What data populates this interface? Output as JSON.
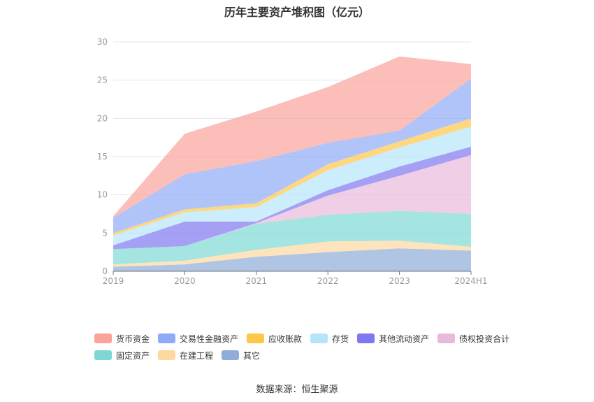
{
  "chart_data": {
    "type": "area",
    "title": "历年主要资产堆积图（亿元）",
    "categories": [
      "2019",
      "2020",
      "2021",
      "2022",
      "2023",
      "2024H1"
    ],
    "ylim": [
      0,
      30
    ],
    "yticks": [
      0,
      5,
      10,
      15,
      20,
      25,
      30
    ],
    "stacked": true,
    "grid": true,
    "legend_position": "bottom",
    "series": [
      {
        "name": "其它",
        "color": "#8fadd9",
        "values": [
          0.6,
          0.9,
          1.9,
          2.5,
          3.0,
          2.7
        ]
      },
      {
        "name": "在建工程",
        "color": "#fdd9a0",
        "values": [
          0.3,
          0.5,
          0.9,
          1.4,
          1.0,
          0.5
        ]
      },
      {
        "name": "固定资产",
        "color": "#7dd8d4",
        "values": [
          2.0,
          1.9,
          3.4,
          3.5,
          3.9,
          4.3
        ]
      },
      {
        "name": "债权投资合计",
        "color": "#e9b9db",
        "values": [
          0.0,
          0.0,
          0.1,
          2.5,
          4.6,
          7.7
        ]
      },
      {
        "name": "其他流动资产",
        "color": "#7f78ef",
        "values": [
          0.5,
          3.2,
          0.2,
          0.7,
          1.2,
          1.1
        ]
      },
      {
        "name": "存货",
        "color": "#b5e5fb",
        "values": [
          1.3,
          1.2,
          1.9,
          2.6,
          2.5,
          2.6
        ]
      },
      {
        "name": "应收账款",
        "color": "#fdc84a",
        "values": [
          0.3,
          0.4,
          0.5,
          0.8,
          0.8,
          1.1
        ]
      },
      {
        "name": "交易性金融资产",
        "color": "#8fabf7",
        "values": [
          2.0,
          4.6,
          5.5,
          2.8,
          1.4,
          5.2
        ]
      },
      {
        "name": "货币资金",
        "color": "#f9a39b",
        "values": [
          0.2,
          5.3,
          6.5,
          7.3,
          9.7,
          1.9
        ]
      }
    ]
  },
  "legend": {
    "row1": [
      {
        "label": "货币资金",
        "color": "#f9a39b"
      },
      {
        "label": "交易性金融资产",
        "color": "#8fabf7"
      },
      {
        "label": "应收账款",
        "color": "#fdc84a"
      },
      {
        "label": "存货",
        "color": "#b5e5fb"
      },
      {
        "label": "其他流动资产",
        "color": "#7f78ef"
      },
      {
        "label": "债权投资合计",
        "color": "#e9b9db"
      }
    ],
    "row2": [
      {
        "label": "固定资产",
        "color": "#7dd8d4"
      },
      {
        "label": "在建工程",
        "color": "#fdd9a0"
      },
      {
        "label": "其它",
        "color": "#8fadd9"
      }
    ]
  },
  "source": "数据来源：恒生聚源"
}
